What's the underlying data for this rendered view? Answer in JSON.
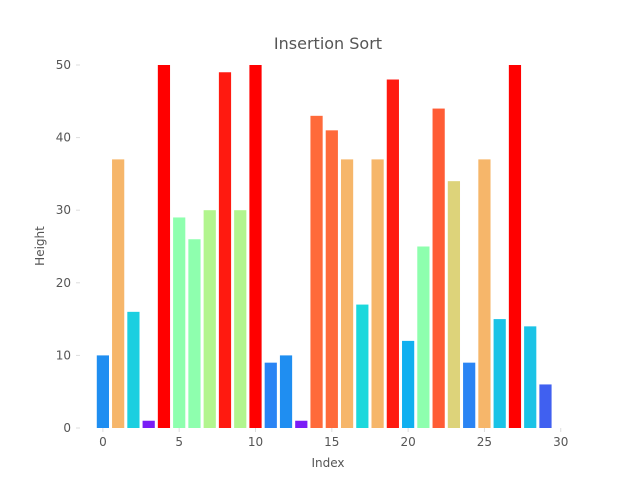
{
  "chart_data": {
    "type": "bar",
    "title": "Insertion Sort",
    "xlabel": "Index",
    "ylabel": "Height",
    "xlim": [
      -1.5,
      31
    ],
    "ylim": [
      0,
      50
    ],
    "xticks": [
      0,
      5,
      10,
      15,
      20,
      25,
      30
    ],
    "yticks": [
      0,
      10,
      20,
      30,
      40,
      50
    ],
    "grid": false,
    "x": [
      0,
      1,
      2,
      3,
      4,
      5,
      6,
      7,
      8,
      9,
      10,
      11,
      12,
      13,
      14,
      15,
      16,
      17,
      18,
      19,
      20,
      21,
      22,
      23,
      24,
      25,
      26,
      27,
      28,
      29
    ],
    "values": [
      10,
      37,
      16,
      1,
      50,
      29,
      26,
      30,
      49,
      30,
      50,
      9,
      10,
      1,
      43,
      41,
      37,
      17,
      37,
      48,
      12,
      25,
      44,
      34,
      9,
      37,
      15,
      50,
      14,
      6
    ],
    "colors": [
      "#1f8ef1",
      "#f6b66a",
      "#1bcfe0",
      "#7a1cf6",
      "#ff0000",
      "#8effae",
      "#8effae",
      "#b2f58e",
      "#ff1a10",
      "#b2f58e",
      "#ff0000",
      "#2a84f4",
      "#1f8ef1",
      "#7a1cf6",
      "#ff6a3a",
      "#ff6a3a",
      "#f6b66a",
      "#1bd8dc",
      "#f6b66a",
      "#ff1a10",
      "#10b0f0",
      "#8effae",
      "#ff5c35",
      "#ddd37a",
      "#2a84f4",
      "#f6b66a",
      "#1bc3e6",
      "#ff0000",
      "#1bc3e6",
      "#4060f0"
    ]
  }
}
